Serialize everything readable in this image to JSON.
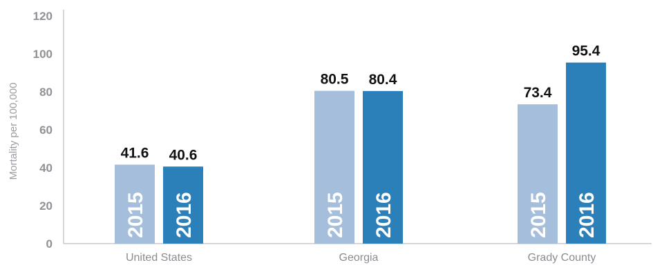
{
  "chart_data": {
    "type": "bar",
    "categories": [
      "United States",
      "Georgia",
      "Grady County"
    ],
    "series": [
      {
        "name": "2015",
        "values": [
          41.6,
          80.5,
          73.4
        ]
      },
      {
        "name": "2016",
        "values": [
          40.6,
          80.4,
          95.4
        ]
      }
    ],
    "value_labels": [
      [
        "41.6",
        "80.5",
        "73.4"
      ],
      [
        "40.6",
        "80.4",
        "95.4"
      ]
    ],
    "title": "",
    "xlabel": "",
    "ylabel": "Mortality per 100,000",
    "ylim": [
      0,
      120
    ],
    "yticks": [
      0,
      20,
      40,
      60,
      80,
      100,
      120
    ],
    "grid": false,
    "legend": "none (series names printed vertically inside bars)",
    "colors": {
      "2015": "#a4bedc",
      "2016": "#2b80b9",
      "axis": "#c7c9cc",
      "label": "#111111"
    }
  }
}
